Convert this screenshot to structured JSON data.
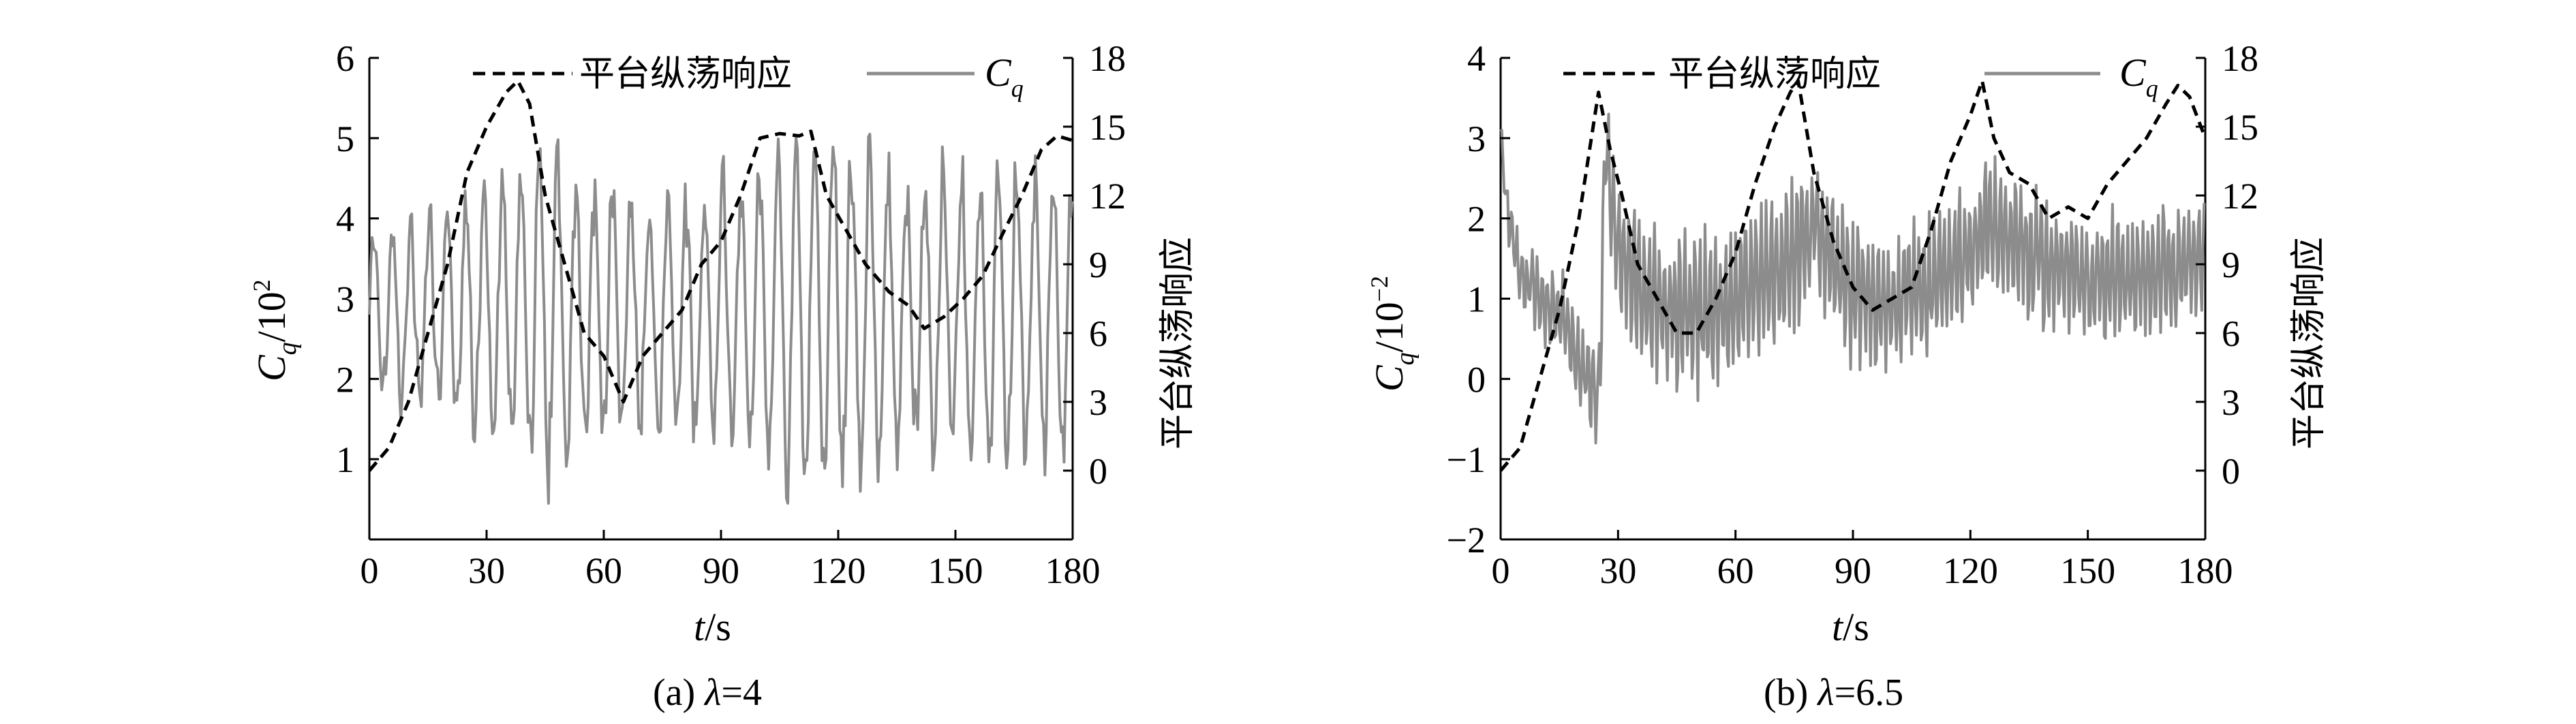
{
  "colors": {
    "cq_line": "#8c8c8c",
    "surge_line": "#000000",
    "axis": "#000000"
  },
  "chart_data": [
    {
      "type": "line",
      "caption": "(a) λ=4",
      "caption_prefix": "(a) ",
      "caption_lambda": "λ",
      "caption_value": "=4",
      "xlabel_var": "t",
      "xlabel_unit": "/s",
      "ylabel_left_var": "C",
      "ylabel_left_sub": "q",
      "ylabel_left_rest": "/10",
      "ylabel_left_exp": "2",
      "ylabel_right": "平台纵荡响应",
      "xlim": [
        0,
        180
      ],
      "ylim_left": [
        0,
        6
      ],
      "ylim_right": [
        -3,
        18
      ],
      "xticks": [
        "0",
        "30",
        "60",
        "90",
        "120",
        "150",
        "180"
      ],
      "yticks_left": [
        "1",
        "2",
        "3",
        "4",
        "5",
        "6"
      ],
      "yticks_right": [
        "0",
        "3",
        "6",
        "9",
        "12",
        "15",
        "18"
      ],
      "legend": {
        "surge_label": "平台纵荡响应",
        "cq_var": "C",
        "cq_sub": "q"
      },
      "series": [
        {
          "name": "平台纵荡响应",
          "axis": "right",
          "style": "dashed",
          "x": [
            0,
            5,
            10,
            15,
            20,
            25,
            30,
            35,
            38,
            41,
            45,
            50,
            55,
            60,
            65,
            70,
            75,
            80,
            85,
            90,
            95,
            100,
            105,
            110,
            113,
            117,
            122,
            127,
            133,
            138,
            142,
            147,
            152,
            157,
            162,
            167,
            172,
            176,
            180
          ],
          "y": [
            0,
            1,
            3,
            6,
            9,
            13,
            15,
            16.5,
            17,
            16,
            12,
            9,
            6,
            5,
            3,
            5,
            6,
            7,
            9,
            10,
            12,
            14.5,
            14.7,
            14.6,
            14.8,
            12,
            10.5,
            9,
            7.8,
            7.2,
            6.2,
            6.7,
            7.5,
            8.5,
            10.3,
            12,
            14,
            14.6,
            14.4
          ]
        },
        {
          "name": "Cq",
          "axis": "left",
          "style": "solid",
          "x_range": [
            0,
            180
          ],
          "oscillation": "dense, roughly 4.7 s period",
          "mean": 2.8,
          "envelope": {
            "x": [
              0,
              20,
              35,
              45,
              60,
              75,
              95,
              110,
              125,
              140,
              160,
              180
            ],
            "amp": [
              1.0,
              1.2,
              1.6,
              2.1,
              1.5,
              1.3,
              1.6,
              2.2,
              1.9,
              1.5,
              1.7,
              1.6
            ]
          }
        }
      ]
    },
    {
      "type": "line",
      "caption": "(b) λ=6.5",
      "caption_prefix": "(b) ",
      "caption_lambda": "λ",
      "caption_value": "=6.5",
      "xlabel_var": "t",
      "xlabel_unit": "/s",
      "ylabel_left_var": "C",
      "ylabel_left_sub": "q",
      "ylabel_left_rest": "/10",
      "ylabel_left_exp": "−2",
      "ylabel_right": "平台纵荡响应",
      "xlim": [
        0,
        180
      ],
      "ylim_left": [
        -2,
        4
      ],
      "ylim_right": [
        -3,
        18
      ],
      "xticks": [
        "0",
        "30",
        "60",
        "90",
        "120",
        "150",
        "180"
      ],
      "yticks_left": [
        "−2",
        "−1",
        "0",
        "1",
        "2",
        "3",
        "4"
      ],
      "yticks_right": [
        "0",
        "3",
        "6",
        "9",
        "12",
        "15",
        "18"
      ],
      "legend": {
        "surge_label": "平台纵荡响应",
        "cq_var": "C",
        "cq_sub": "q"
      },
      "series": [
        {
          "name": "平台纵荡响应",
          "axis": "right",
          "style": "dashed",
          "x": [
            0,
            5,
            10,
            15,
            20,
            25,
            28,
            31,
            35,
            40,
            45,
            50,
            55,
            60,
            65,
            70,
            74,
            76,
            80,
            85,
            90,
            95,
            100,
            105,
            110,
            115,
            120,
            123,
            126,
            130,
            135,
            140,
            145,
            150,
            155,
            160,
            165,
            170,
            173,
            176,
            180
          ],
          "y": [
            0,
            1,
            4,
            7,
            11,
            16.5,
            14,
            12,
            9,
            7.5,
            6,
            6,
            7.5,
            9.5,
            12.5,
            15,
            16.5,
            17,
            13,
            10,
            8,
            7,
            7.5,
            8,
            10.5,
            13.5,
            15.5,
            17,
            14.5,
            13,
            12.5,
            11,
            11.5,
            11,
            12.5,
            13.5,
            14.5,
            16,
            16.8,
            16.3,
            14.5
          ]
        },
        {
          "name": "Cq",
          "axis": "left",
          "style": "solid",
          "x_range": [
            0,
            180
          ],
          "oscillation": "dense, high frequency",
          "baseline": {
            "x": [
              0,
              2,
              5,
              10,
              15,
              22,
              25,
              27,
              30,
              40,
              55,
              65,
              75,
              80,
              90,
              100,
              110,
              120,
              125,
              135,
              150,
              165,
              180
            ],
            "y": [
              3,
              2.0,
              1.3,
              1.0,
              0.8,
              0.0,
              -0.3,
              3.0,
              1.6,
              0.9,
              0.8,
              1.2,
              1.5,
              2.0,
              1.0,
              0.9,
              1.2,
              1.6,
              2.0,
              1.5,
              1.2,
              1.3,
              1.5
            ]
          },
          "amp": {
            "x": [
              0,
              10,
              25,
              27,
              40,
              60,
              80,
              100,
              120,
              140,
              160,
              180
            ],
            "a": [
              0.3,
              0.5,
              0.6,
              0.9,
              0.9,
              1.0,
              0.9,
              0.8,
              0.9,
              0.8,
              0.8,
              0.8
            ]
          }
        }
      ]
    }
  ]
}
